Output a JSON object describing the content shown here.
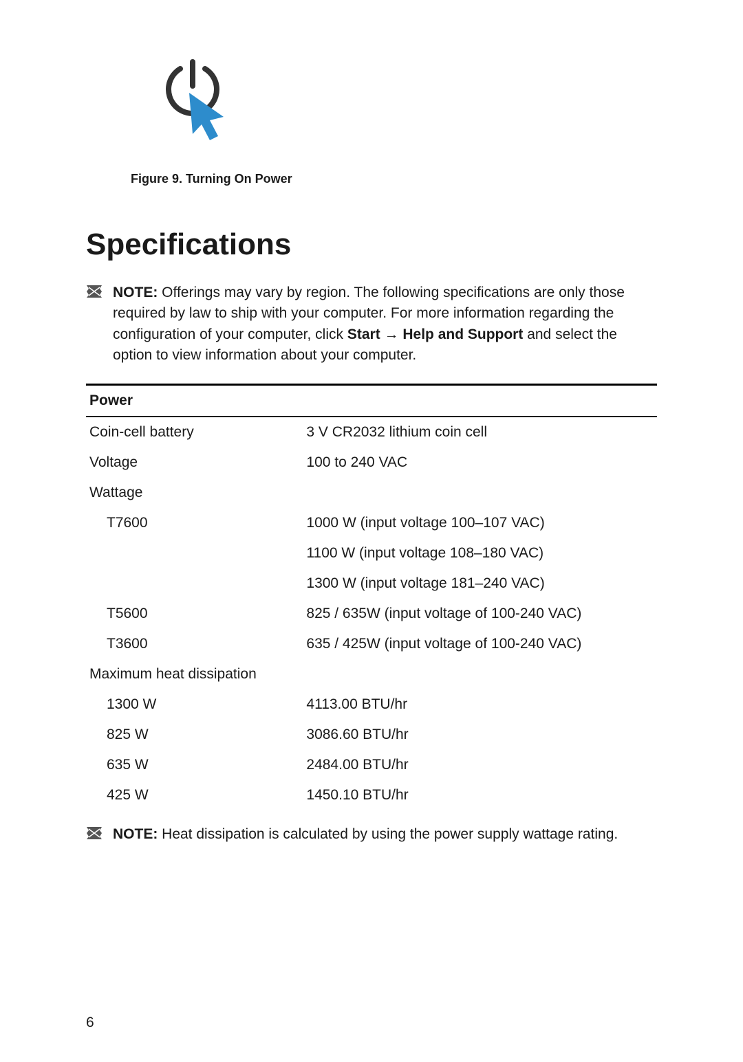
{
  "figure": {
    "caption": "Figure 9. Turning On Power",
    "icon": {
      "circle_color": "#333333",
      "arrow_color": "#2d8ccc"
    }
  },
  "section_heading": "Specifications",
  "note1": {
    "bold": "NOTE:",
    "text_part1": " Offerings may vary by region. The following specifications are only those required by law to ship with your computer. For more information regarding the configuration of your computer, click ",
    "bold2": "Start → Help and Support",
    "text_part2": " and select the option to view information about your computer."
  },
  "table": {
    "header": "Power",
    "rows": [
      {
        "label": "Coin-cell battery",
        "value": "3 V CR2032 lithium coin cell",
        "indent": false
      },
      {
        "label": "Voltage",
        "value": "100 to 240 VAC",
        "indent": false
      },
      {
        "label": "Wattage",
        "value": "",
        "indent": false
      },
      {
        "label": "T7600",
        "value": "1000 W (input voltage 100–107 VAC)",
        "indent": true
      },
      {
        "label": "",
        "value": "1100 W (input voltage 108–180 VAC)",
        "indent": true
      },
      {
        "label": "",
        "value": "1300 W (input voltage 181–240 VAC)",
        "indent": true
      },
      {
        "label": "T5600",
        "value": "825 / 635W (input voltage of 100-240 VAC)",
        "indent": true
      },
      {
        "label": "T3600",
        "value": "635 / 425W (input voltage of 100-240 VAC)",
        "indent": true
      },
      {
        "label": "Maximum heat dissipation",
        "value": "",
        "indent": false
      },
      {
        "label": "1300 W",
        "value": "4113.00 BTU/hr",
        "indent": true
      },
      {
        "label": "825 W",
        "value": "3086.60 BTU/hr",
        "indent": true
      },
      {
        "label": "635 W",
        "value": "2484.00 BTU/hr",
        "indent": true
      },
      {
        "label": "425 W",
        "value": "1450.10 BTU/hr",
        "indent": true
      }
    ]
  },
  "note2": {
    "bold": "NOTE:",
    "text": " Heat dissipation is calculated by using the power supply wattage rating."
  },
  "page_number": "6",
  "note_icon_color": "#555555"
}
